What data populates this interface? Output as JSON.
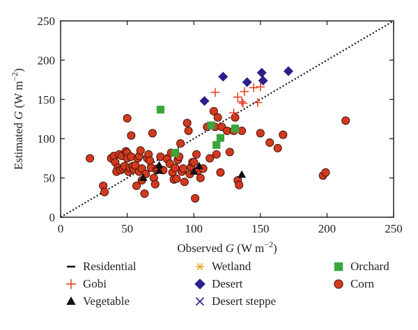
{
  "chart_data": {
    "type": "scatter",
    "xlabel_prefix": "Observed ",
    "xlabel_var": "G",
    "xlabel_unit": " (W m",
    "xlabel_sup": "−2",
    "xlabel_close": ")",
    "ylabel_prefix": "Estimated ",
    "ylabel_var": "G",
    "ylabel_unit": " (W m",
    "ylabel_sup": "−2",
    "ylabel_close": ")",
    "xlim": [
      0,
      250
    ],
    "ylim": [
      0,
      250
    ],
    "xticks": [
      "0",
      "50",
      "100",
      "150",
      "200",
      "250"
    ],
    "yticks": [
      "0",
      "50",
      "100",
      "150",
      "200",
      "250"
    ],
    "one_to_one_line": true,
    "legend_placement": "bottom",
    "series": [
      {
        "name": "Residential",
        "marker": "dash",
        "color": "#111111",
        "points": []
      },
      {
        "name": "Gobi",
        "marker": "plus",
        "color": "#e8432a",
        "points": [
          [
            116,
            159
          ],
          [
            145,
            165
          ],
          [
            150,
            166
          ],
          [
            138,
            160
          ],
          [
            133,
            153
          ],
          [
            136,
            147
          ],
          [
            137,
            145
          ],
          [
            148,
            146
          ],
          [
            130,
            133
          ]
        ]
      },
      {
        "name": "Vegetable",
        "marker": "triangle",
        "color": "#111111",
        "points": [
          [
            62,
            50
          ],
          [
            74,
            59
          ],
          [
            74,
            66
          ],
          [
            100,
            58
          ],
          [
            104,
            65
          ],
          [
            136,
            54
          ]
        ]
      },
      {
        "name": "Wetland",
        "marker": "asterisk",
        "color": "#e8a020",
        "points": []
      },
      {
        "name": "Desert",
        "marker": "diamond",
        "color": "#2b1f8a",
        "points": [
          [
            108,
            148
          ],
          [
            122,
            179
          ],
          [
            140,
            172
          ],
          [
            151,
            184
          ],
          [
            152,
            174
          ],
          [
            171,
            186
          ]
        ]
      },
      {
        "name": "Desert steppe",
        "marker": "x",
        "color": "#2b1f8a",
        "points": []
      },
      {
        "name": "Orchard",
        "marker": "square",
        "color": "#3aa63a",
        "points": [
          [
            75,
            137
          ],
          [
            86,
            82
          ],
          [
            113,
            117
          ],
          [
            117,
            92
          ],
          [
            120,
            101
          ],
          [
            131,
            113
          ]
        ]
      },
      {
        "name": "Corn",
        "marker": "circle",
        "color": "#d13a1f",
        "points": [
          [
            22,
            75
          ],
          [
            32,
            40
          ],
          [
            33,
            32
          ],
          [
            38,
            75
          ],
          [
            40,
            78
          ],
          [
            41,
            70
          ],
          [
            43,
            63
          ],
          [
            42,
            58
          ],
          [
            44,
            80
          ],
          [
            45,
            60
          ],
          [
            46,
            78
          ],
          [
            47,
            62
          ],
          [
            48,
            65
          ],
          [
            49,
            84
          ],
          [
            50,
            82
          ],
          [
            50,
            75
          ],
          [
            51,
            58
          ],
          [
            52,
            63
          ],
          [
            50,
            126
          ],
          [
            53,
            104
          ],
          [
            53,
            77
          ],
          [
            54,
            65
          ],
          [
            55,
            61
          ],
          [
            56,
            66
          ],
          [
            57,
            40
          ],
          [
            58,
            75
          ],
          [
            59,
            78
          ],
          [
            59,
            58
          ],
          [
            60,
            85
          ],
          [
            61,
            47
          ],
          [
            61,
            62
          ],
          [
            63,
            30
          ],
          [
            64,
            55
          ],
          [
            65,
            75
          ],
          [
            66,
            80
          ],
          [
            67,
            72
          ],
          [
            68,
            63
          ],
          [
            69,
            107
          ],
          [
            70,
            50
          ],
          [
            71,
            42
          ],
          [
            72,
            60
          ],
          [
            73,
            62
          ],
          [
            75,
            77
          ],
          [
            77,
            60
          ],
          [
            80,
            74
          ],
          [
            82,
            68
          ],
          [
            83,
            82
          ],
          [
            84,
            57
          ],
          [
            85,
            48
          ],
          [
            86,
            63
          ],
          [
            87,
            49
          ],
          [
            88,
            73
          ],
          [
            89,
            77
          ],
          [
            90,
            94
          ],
          [
            91,
            58
          ],
          [
            92,
            62
          ],
          [
            93,
            45
          ],
          [
            95,
            120
          ],
          [
            96,
            110
          ],
          [
            97,
            55
          ],
          [
            98,
            64
          ],
          [
            99,
            70
          ],
          [
            100,
            70
          ],
          [
            101,
            24
          ],
          [
            102,
            80
          ],
          [
            103,
            59
          ],
          [
            105,
            50
          ],
          [
            107,
            62
          ],
          [
            110,
            115
          ],
          [
            112,
            75
          ],
          [
            115,
            135
          ],
          [
            116,
            115
          ],
          [
            117,
            80
          ],
          [
            118,
            127
          ],
          [
            120,
            57
          ],
          [
            121,
            115
          ],
          [
            125,
            110
          ],
          [
            127,
            83
          ],
          [
            130,
            110
          ],
          [
            131,
            127
          ],
          [
            133,
            47
          ],
          [
            134,
            41
          ],
          [
            136,
            110
          ],
          [
            150,
            107
          ],
          [
            157,
            95
          ],
          [
            163,
            88
          ],
          [
            167,
            105
          ],
          [
            197,
            53
          ],
          [
            199,
            57
          ],
          [
            214,
            123
          ]
        ]
      }
    ],
    "legend_order": [
      "Residential",
      "Wetland",
      "Orchard",
      "Gobi",
      "Desert",
      "Corn",
      "Vegetable",
      "Desert steppe"
    ]
  }
}
